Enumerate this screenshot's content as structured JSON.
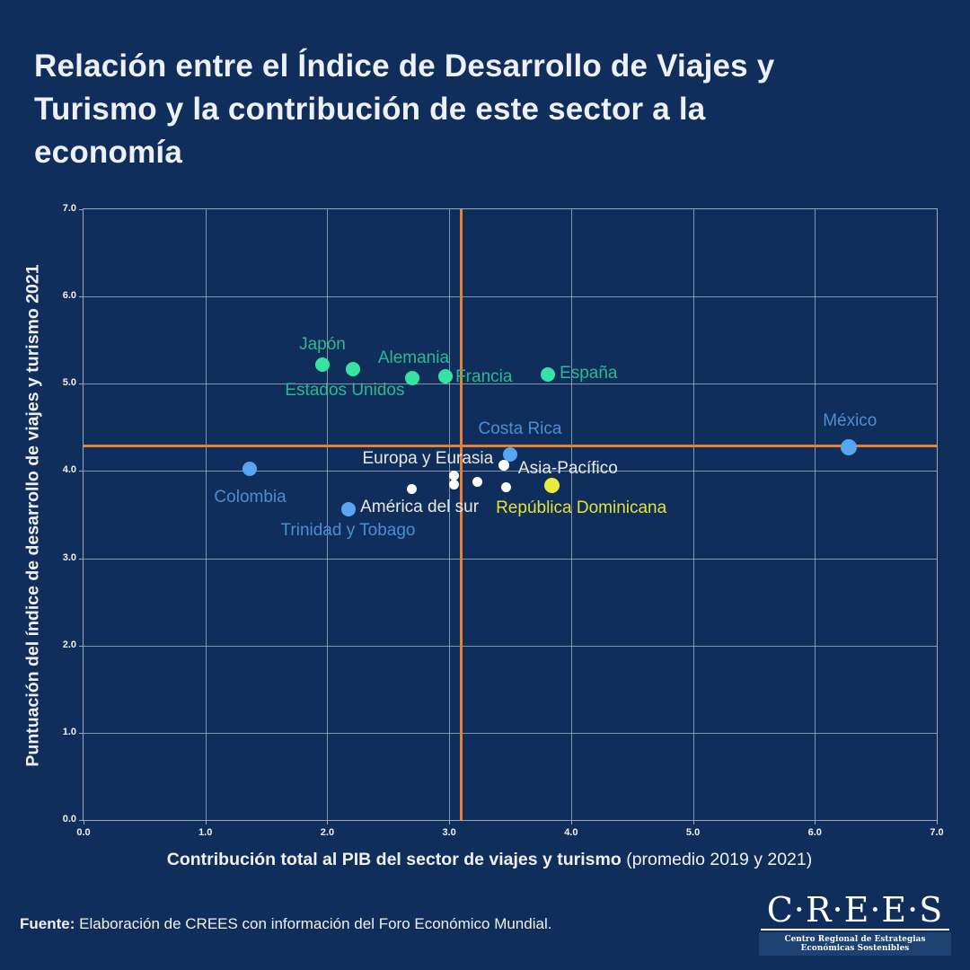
{
  "title_lines": [
    "Relación entre el Índice de Desarrollo de Viajes y",
    "Turismo y la contribución de este sector a la",
    "economía"
  ],
  "footer": {
    "label": "Fuente:",
    "text": "Elaboración de CREES con información del Foro Económico Mundial."
  },
  "logo": {
    "wordmark": "C·R·E·E·S",
    "tagline": "Centro Regional de Estrategias Económicas Sostenibles"
  },
  "colors": {
    "background": "#102E5C",
    "title_text": "#EDF1F6",
    "grid": "#ACB8C6",
    "axis_border": "#9DA9B6",
    "reference_line": "#E8812E",
    "green_dot": "#36E3A1",
    "green_label": "#2CB98E",
    "blue_dot": "#58A6F1",
    "blue_label": "#4A8FD2",
    "white_dot": "#FFFFFF",
    "white_label": "#E8E8E8",
    "yellow_dot": "#E9E93F",
    "yellow_label": "#E2E236"
  },
  "chart_data": {
    "type": "scatter",
    "title": "Relación entre el Índice de Desarrollo de Viajes y Turismo y la contribución de este sector a la economía",
    "xlabel": "Contribución total al PIB del sector de viajes y turismo",
    "xlabel_note": " (promedio 2019 y 2021)",
    "ylabel": "Puntuación del índice de desarrollo de viajes y turismo 2021",
    "xlim": [
      0,
      7
    ],
    "ylim": [
      0,
      7
    ],
    "grid": true,
    "legend": "none",
    "xticks": [
      "0.0",
      "1.0",
      "2.0",
      "3.0",
      "4.0",
      "5.0",
      "6.0",
      "7.0"
    ],
    "yticks": [
      "0.0",
      "1.0",
      "2.0",
      "3.0",
      "4.0",
      "5.0",
      "6.0",
      "7.0"
    ],
    "reference_lines": {
      "vertical_x": 3.1,
      "horizontal_y": 4.29,
      "color": "#E8812E"
    },
    "series": [
      {
        "id": "green",
        "color": "#36E3A1",
        "label_color": "#2CB98E",
        "points": [
          {
            "label": "Japón",
            "x": 1.96,
            "y": 5.22,
            "r": 8,
            "anchor": "center",
            "dx": 0,
            "dy": -22
          },
          {
            "label": "Estados Unidos",
            "x": 2.21,
            "y": 5.17,
            "r": 8,
            "anchor": "center",
            "dx": -9,
            "dy": 24
          },
          {
            "label": "Alemania",
            "x": 2.7,
            "y": 5.06,
            "r": 8,
            "anchor": "center",
            "dx": 1,
            "dy": -22
          },
          {
            "label": "Francia",
            "x": 2.97,
            "y": 5.09,
            "r": 8,
            "anchor": "left",
            "dx": 11,
            "dy": 1
          },
          {
            "label": "España",
            "x": 3.81,
            "y": 5.11,
            "r": 8,
            "anchor": "left",
            "dx": 13,
            "dy": -1
          }
        ]
      },
      {
        "id": "blue",
        "color": "#58A6F1",
        "label_color": "#4A8FD2",
        "points": [
          {
            "label": "Colombia",
            "x": 1.36,
            "y": 4.02,
            "r": 8,
            "anchor": "center",
            "dx": 1,
            "dy": 32
          },
          {
            "label": "Costa Rica",
            "x": 3.5,
            "y": 4.19,
            "r": 8,
            "anchor": "center",
            "dx": 11,
            "dy": -28
          },
          {
            "label": "México",
            "x": 6.28,
            "y": 4.27,
            "r": 9,
            "anchor": "center",
            "dx": 1,
            "dy": -29
          },
          {
            "label": "Trinidad y Tobago",
            "x": 2.17,
            "y": 3.56,
            "r": 8,
            "anchor": "center",
            "dx": 0,
            "dy": 24
          }
        ]
      },
      {
        "id": "white",
        "color": "#FFFFFF",
        "label_color": "#E8E8E8",
        "points": [
          {
            "label": "Europa y Eurasia",
            "x": 3.45,
            "y": 4.07,
            "r": 6,
            "anchor": "right",
            "dx": -12,
            "dy": -7
          },
          {
            "label": "",
            "x": 3.04,
            "y": 3.95,
            "r": 5.5
          },
          {
            "label": "",
            "x": 3.04,
            "y": 3.84,
            "r": 5.5
          },
          {
            "label": "",
            "x": 3.23,
            "y": 3.88,
            "r": 5.5
          },
          {
            "label": "Asia-Pacífico",
            "x": 3.47,
            "y": 3.81,
            "r": 5.5,
            "anchor": "left",
            "dx": 13,
            "dy": -21
          },
          {
            "label": "América del sur",
            "x": 2.69,
            "y": 3.79,
            "r": 5.5,
            "anchor": "center",
            "dx": 9,
            "dy": 20
          }
        ]
      },
      {
        "id": "yellow",
        "color": "#E9E93F",
        "label_color": "#E2E236",
        "points": [
          {
            "label": "República Dominicana",
            "x": 3.84,
            "y": 3.83,
            "r": 8.5,
            "anchor": "center",
            "dx": 33,
            "dy": 25
          }
        ]
      }
    ]
  }
}
